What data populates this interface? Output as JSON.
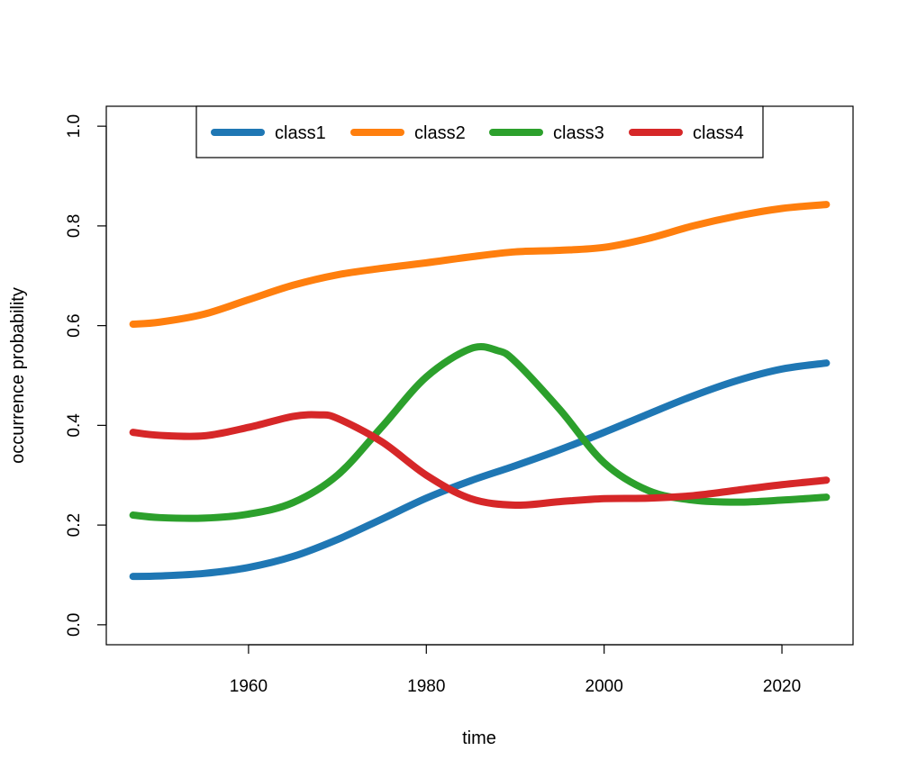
{
  "chart_data": {
    "type": "line",
    "xlabel": "time",
    "ylabel": "occurrence probability",
    "xlim": [
      1944.0,
      2028.0
    ],
    "ylim": [
      -0.04,
      1.04
    ],
    "x_ticks": [
      1960,
      1980,
      2000,
      2020
    ],
    "y_ticks": [
      0.0,
      0.2,
      0.4,
      0.6,
      0.8,
      1.0
    ],
    "y_tick_labels": [
      "0.0",
      "0.2",
      "0.4",
      "0.6",
      "0.8",
      "1.0"
    ],
    "legend_position": "top",
    "grid": false,
    "series": [
      {
        "name": "class1",
        "color": "#1f77b4",
        "x": [
          1947,
          1950,
          1955,
          1960,
          1965,
          1970,
          1975,
          1980,
          1985,
          1990,
          1995,
          2000,
          2005,
          2010,
          2015,
          2020,
          2025
        ],
        "y": [
          0.097,
          0.098,
          0.103,
          0.115,
          0.137,
          0.171,
          0.212,
          0.254,
          0.289,
          0.319,
          0.351,
          0.386,
          0.423,
          0.459,
          0.49,
          0.513,
          0.525
        ]
      },
      {
        "name": "class2",
        "color": "#ff7f0e",
        "x": [
          1947,
          1950,
          1955,
          1960,
          1965,
          1970,
          1975,
          1980,
          1985,
          1990,
          1995,
          2000,
          2005,
          2010,
          2015,
          2020,
          2025
        ],
        "y": [
          0.603,
          0.607,
          0.623,
          0.652,
          0.681,
          0.702,
          0.715,
          0.726,
          0.738,
          0.748,
          0.751,
          0.757,
          0.775,
          0.8,
          0.82,
          0.835,
          0.843
        ]
      },
      {
        "name": "class3",
        "color": "#2ca02c",
        "x": [
          1947,
          1950,
          1955,
          1960,
          1965,
          1970,
          1975,
          1980,
          1985,
          1988,
          1990,
          1995,
          2000,
          2005,
          2010,
          2015,
          2020,
          2025
        ],
        "y": [
          0.22,
          0.215,
          0.214,
          0.222,
          0.245,
          0.3,
          0.397,
          0.497,
          0.554,
          0.55,
          0.528,
          0.432,
          0.325,
          0.269,
          0.25,
          0.246,
          0.25,
          0.256
        ]
      },
      {
        "name": "class4",
        "color": "#d62728",
        "x": [
          1947,
          1950,
          1955,
          1960,
          1965,
          1968,
          1970,
          1975,
          1980,
          1985,
          1990,
          1995,
          2000,
          2005,
          2010,
          2015,
          2020,
          2025
        ],
        "y": [
          0.386,
          0.38,
          0.379,
          0.396,
          0.418,
          0.421,
          0.414,
          0.367,
          0.3,
          0.253,
          0.24,
          0.247,
          0.253,
          0.254,
          0.259,
          0.27,
          0.281,
          0.29
        ]
      }
    ]
  }
}
